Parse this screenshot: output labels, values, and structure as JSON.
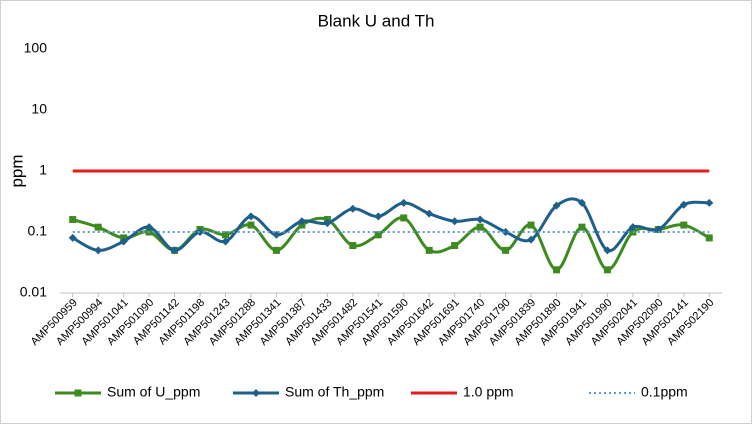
{
  "chart_data": {
    "type": "line",
    "title": "Blank U and Th",
    "y_label": "ppm",
    "categories": [
      "AMP500959",
      "AMP500994",
      "AMP501041",
      "AMP501090",
      "AMP501142",
      "AMP501198",
      "AMP501243",
      "AMP501288",
      "AMP501341",
      "AMP501387",
      "AMP501433",
      "AMP501482",
      "AMP501541",
      "AMP501590",
      "AMP501642",
      "AMP501691",
      "AMP501740",
      "AMP501790",
      "AMP501839",
      "AMP501890",
      "AMP501941",
      "AMP501990",
      "AMP502041",
      "AMP502090",
      "AMP502141",
      "AMP502190"
    ],
    "series": [
      {
        "name": "Sum of U_ppm",
        "color": "#3d8b1f",
        "marker": "square",
        "line_style": "solid",
        "smooth": true,
        "values": [
          0.16,
          0.12,
          0.08,
          0.1,
          0.05,
          0.11,
          0.09,
          0.13,
          0.05,
          0.13,
          0.16,
          0.06,
          0.09,
          0.17,
          0.05,
          0.06,
          0.12,
          0.05,
          0.13,
          0.024,
          0.12,
          0.024,
          0.1,
          0.11,
          0.13,
          0.08
        ]
      },
      {
        "name": "Sum of Th_ppm",
        "color": "#1f5f8b",
        "marker": "diamond",
        "line_style": "solid",
        "smooth": true,
        "values": [
          0.08,
          0.05,
          0.07,
          0.12,
          0.05,
          0.1,
          0.07,
          0.18,
          0.09,
          0.15,
          0.14,
          0.24,
          0.18,
          0.3,
          0.2,
          0.15,
          0.16,
          0.1,
          0.075,
          0.27,
          0.3,
          0.05,
          0.12,
          0.11,
          0.28,
          0.3
        ]
      },
      {
        "name": "1.0 ppm",
        "color": "#e8191b",
        "marker": "none",
        "line_style": "solid",
        "smooth": false,
        "values": [
          1,
          1,
          1,
          1,
          1,
          1,
          1,
          1,
          1,
          1,
          1,
          1,
          1,
          1,
          1,
          1,
          1,
          1,
          1,
          1,
          1,
          1,
          1,
          1,
          1,
          1
        ]
      },
      {
        "name": "0.1ppm",
        "color": "#5b9bd5",
        "marker": "none",
        "line_style": "dotted",
        "smooth": false,
        "values": [
          0.1,
          0.1,
          0.1,
          0.1,
          0.1,
          0.1,
          0.1,
          0.1,
          0.1,
          0.1,
          0.1,
          0.1,
          0.1,
          0.1,
          0.1,
          0.1,
          0.1,
          0.1,
          0.1,
          0.1,
          0.1,
          0.1,
          0.1,
          0.1,
          0.1,
          0.1
        ]
      }
    ],
    "log_scale": true,
    "ylim": [
      0.01,
      100
    ],
    "yticks": [
      0.01,
      0.1,
      1,
      10,
      100
    ],
    "grid": false,
    "legend": "bottom"
  }
}
